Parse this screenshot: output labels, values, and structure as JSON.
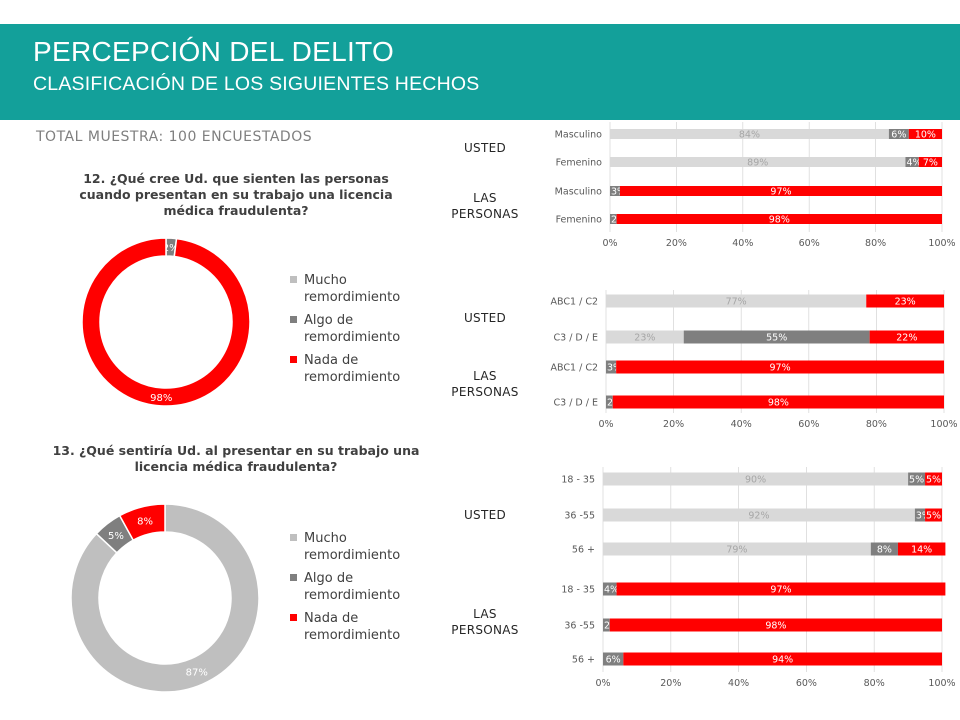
{
  "header": {
    "title": "PERCEPCIÓN DEL DELITO",
    "subtitle": "CLASIFICACIÓN DE LOS SIGUIENTES HECHOS"
  },
  "sample_label": "TOTAL MUESTRA: 100 ENCUESTADOS",
  "group_labels": {
    "usted": "USTED",
    "las_personas_line1": "LAS",
    "las_personas_line2": "PERSONAS"
  },
  "colors": {
    "header": "#13a09a",
    "mucho": "#bfbfbf",
    "algo": "#7f7f7f",
    "nada": "#ff0000",
    "bar_light": "#d9d9d9"
  },
  "q12": {
    "line1": "12. ¿Qué cree Ud. que sienten las personas",
    "line2": "cuando presentan en su trabajo una licencia",
    "line3": "médica fraudulenta?"
  },
  "q13": {
    "line1": "13. ¿Qué sentiría Ud. al presentar en su trabajo una",
    "line2": "licencia médica fraudulenta?"
  },
  "legend": {
    "mucho_1": "Mucho",
    "mucho_2": "remordimiento",
    "algo_1": "Algo de",
    "algo_2": "remordimiento",
    "nada_1": "Nada de",
    "nada_2": "remordimiento"
  },
  "chart_data": [
    {
      "id": "donut12",
      "type": "pie",
      "variant": "donut",
      "categories": [
        "Mucho remordimiento",
        "Algo de remordimiento",
        "Nada de remordimiento"
      ],
      "values": [
        0,
        2,
        98
      ],
      "data_labels": [
        "",
        "2%",
        "98%"
      ],
      "colors": [
        "#bfbfbf",
        "#7f7f7f",
        "#ff0000"
      ],
      "legend_placement": "right"
    },
    {
      "id": "donut13",
      "type": "pie",
      "variant": "donut",
      "categories": [
        "Mucho remordimiento",
        "Algo de remordimiento",
        "Nada de remordimiento"
      ],
      "values": [
        87,
        5,
        8
      ],
      "data_labels": [
        "87%",
        "5%",
        "8%"
      ],
      "colors": [
        "#bfbfbf",
        "#7f7f7f",
        "#ff0000"
      ],
      "legend_placement": "right"
    },
    {
      "id": "bar_sexo",
      "type": "bar",
      "orientation": "horizontal",
      "stacked": true,
      "categories": [
        "Masculino",
        "Femenino",
        "Masculino",
        "Femenino"
      ],
      "groups": [
        "USTED",
        "USTED",
        "LAS PERSONAS",
        "LAS PERSONAS"
      ],
      "series": [
        {
          "values": [
            84,
            89,
            0,
            0
          ],
          "labels": [
            "84%",
            "89%",
            "",
            ""
          ],
          "color": "#d9d9d9"
        },
        {
          "values": [
            6,
            4,
            3,
            2
          ],
          "labels": [
            "6%",
            "4%",
            "3%",
            "2%"
          ],
          "color": "#7f7f7f"
        },
        {
          "values": [
            10,
            7,
            97,
            98
          ],
          "labels": [
            "10%",
            "7%",
            "97%",
            "98%"
          ],
          "color": "#ff0000"
        }
      ],
      "xlim": [
        0,
        100
      ],
      "ticks": [
        "0%",
        "20%",
        "40%",
        "60%",
        "80%",
        "100%"
      ]
    },
    {
      "id": "bar_gse",
      "type": "bar",
      "orientation": "horizontal",
      "stacked": true,
      "categories": [
        "ABC1 / C2",
        "C3 / D / E",
        "ABC1 / C2",
        "C3 / D / E"
      ],
      "groups": [
        "USTED",
        "USTED",
        "LAS PERSONAS",
        "LAS PERSONAS"
      ],
      "series": [
        {
          "values": [
            77,
            23,
            0,
            0
          ],
          "labels": [
            "77%",
            "23%",
            "",
            ""
          ],
          "color": "#d9d9d9"
        },
        {
          "values": [
            0,
            55,
            3,
            2
          ],
          "labels": [
            "",
            "55%",
            "3%",
            "2%"
          ],
          "color": "#7f7f7f"
        },
        {
          "values": [
            23,
            22,
            97,
            98
          ],
          "labels": [
            "23%",
            "22%",
            "97%",
            "98%"
          ],
          "color": "#ff0000"
        }
      ],
      "xlim": [
        0,
        100
      ],
      "ticks": [
        "0%",
        "20%",
        "40%",
        "60%",
        "80%",
        "100%"
      ]
    },
    {
      "id": "bar_edad",
      "type": "bar",
      "orientation": "horizontal",
      "stacked": true,
      "categories": [
        "18 - 35",
        "36 -55",
        "56 +",
        "18 - 35",
        "36 -55",
        "56 +"
      ],
      "groups": [
        "USTED",
        "USTED",
        "USTED",
        "LAS PERSONAS",
        "LAS PERSONAS",
        "LAS PERSONAS"
      ],
      "series": [
        {
          "values": [
            90,
            92,
            79,
            0,
            0,
            0
          ],
          "labels": [
            "90%",
            "92%",
            "79%",
            "",
            "",
            ""
          ],
          "color": "#d9d9d9"
        },
        {
          "values": [
            5,
            3,
            8,
            4,
            2,
            6
          ],
          "labels": [
            "5%",
            "3%",
            "8%",
            "4%",
            "2%",
            "6%"
          ],
          "color": "#7f7f7f"
        },
        {
          "values": [
            5,
            5,
            14,
            97,
            98,
            94
          ],
          "labels": [
            "5%",
            "5%",
            "14%",
            "97%",
            "98%",
            "94%"
          ],
          "color": "#ff0000"
        }
      ],
      "xlim": [
        0,
        100
      ],
      "ticks": [
        "0%",
        "20%",
        "40%",
        "60%",
        "80%",
        "100%"
      ]
    }
  ]
}
